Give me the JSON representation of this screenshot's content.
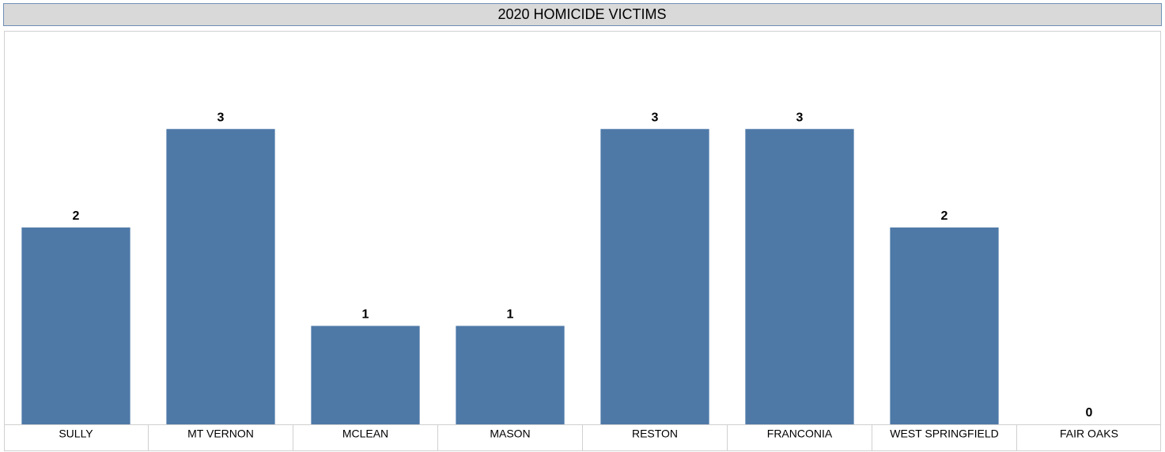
{
  "chart_data": {
    "type": "bar",
    "title": "2020 HOMICIDE VICTIMS",
    "categories": [
      "SULLY",
      "MT VERNON",
      "MCLEAN",
      "MASON",
      "RESTON",
      "FRANCONIA",
      "WEST SPRINGFIELD",
      "FAIR OAKS"
    ],
    "values": [
      2,
      3,
      1,
      1,
      3,
      3,
      2,
      0
    ],
    "color": "#4e79a7"
  }
}
